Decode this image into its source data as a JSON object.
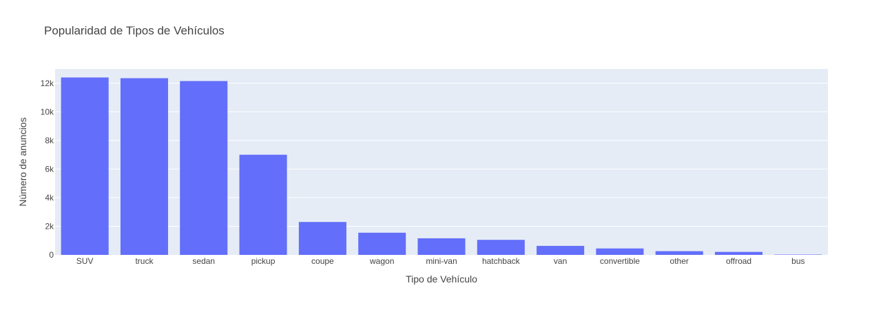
{
  "chart_data": {
    "type": "bar",
    "title": "Popularidad de Tipos de Vehículos",
    "xlabel": "Tipo de Vehículo",
    "ylabel": "Número de anuncios",
    "categories": [
      "SUV",
      "truck",
      "sedan",
      "pickup",
      "coupe",
      "wagon",
      "mini-van",
      "hatchback",
      "van",
      "convertible",
      "other",
      "offroad",
      "bus"
    ],
    "values": [
      12400,
      12350,
      12150,
      7000,
      2300,
      1550,
      1160,
      1050,
      630,
      450,
      260,
      210,
      25
    ],
    "ylim": [
      0,
      13000
    ],
    "yticks": [
      0,
      2000,
      4000,
      6000,
      8000,
      10000,
      12000
    ],
    "ytick_labels": [
      "0",
      "2k",
      "4k",
      "6k",
      "8k",
      "10k",
      "12k"
    ],
    "grid": true,
    "bar_color": "#636efa",
    "plot_bgcolor": "#e5ecf6"
  }
}
